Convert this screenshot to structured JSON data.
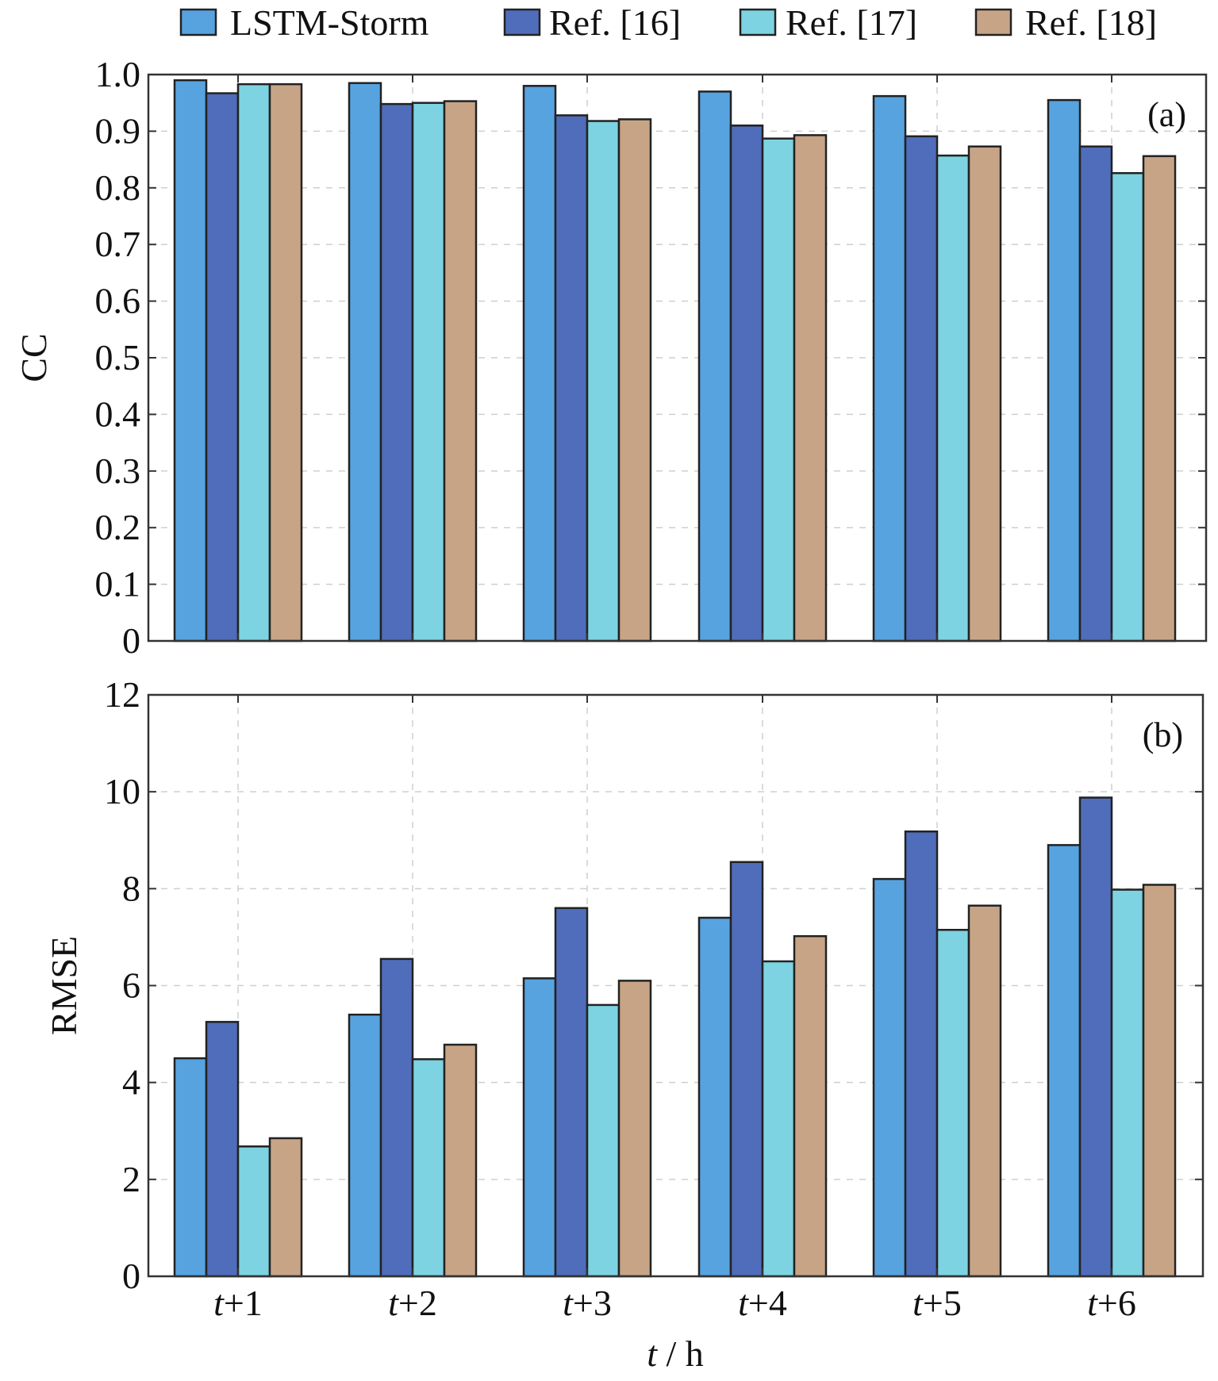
{
  "legend": {
    "entries": [
      "LSTM-Storm",
      "Ref. [16]",
      "Ref. [17]",
      "Ref. [18]"
    ]
  },
  "colors": {
    "LSTM-Storm": "#57a3e0",
    "Ref. [16]": "#4f6dba",
    "Ref. [17]": "#7dd3e2",
    "Ref. [18]": "#c8a487",
    "grid": "#cfcfcf",
    "frame": "#333333",
    "bar_outline": "#222222"
  },
  "xaxis": {
    "title": "t / h",
    "categories": [
      {
        "italic": "t",
        "rest": "+1"
      },
      {
        "italic": "t",
        "rest": "+2"
      },
      {
        "italic": "t",
        "rest": "+3"
      },
      {
        "italic": "t",
        "rest": "+4"
      },
      {
        "italic": "t",
        "rest": "+5"
      },
      {
        "italic": "t",
        "rest": "+6"
      }
    ],
    "title_italic": "t",
    "title_rest": " / h"
  },
  "chart_data": [
    {
      "type": "bar",
      "panel_label": "(a)",
      "ylabel": "CC",
      "ylim": [
        0,
        1.0
      ],
      "yticks": [
        "0",
        "0.1",
        "0.2",
        "0.3",
        "0.4",
        "0.5",
        "0.6",
        "0.7",
        "0.8",
        "0.9",
        "1.0"
      ],
      "ytick_values": [
        0,
        0.1,
        0.2,
        0.3,
        0.4,
        0.5,
        0.6,
        0.7,
        0.8,
        0.9,
        1.0
      ],
      "categories": [
        "t+1",
        "t+2",
        "t+3",
        "t+4",
        "t+5",
        "t+6"
      ],
      "grid": true,
      "legend_position": "top",
      "series": [
        {
          "name": "LSTM-Storm",
          "values": [
            0.99,
            0.985,
            0.98,
            0.97,
            0.962,
            0.955
          ]
        },
        {
          "name": "Ref. [16]",
          "values": [
            0.967,
            0.948,
            0.928,
            0.91,
            0.891,
            0.873
          ]
        },
        {
          "name": "Ref. [17]",
          "values": [
            0.983,
            0.95,
            0.918,
            0.887,
            0.857,
            0.826
          ]
        },
        {
          "name": "Ref. [18]",
          "values": [
            0.983,
            0.953,
            0.921,
            0.893,
            0.873,
            0.856
          ]
        }
      ]
    },
    {
      "type": "bar",
      "panel_label": "(b)",
      "ylabel": "RMSE",
      "ylim": [
        0,
        12
      ],
      "yticks": [
        "0",
        "2",
        "4",
        "6",
        "8",
        "10",
        "12"
      ],
      "ytick_values": [
        0,
        2,
        4,
        6,
        8,
        10,
        12
      ],
      "categories": [
        "t+1",
        "t+2",
        "t+3",
        "t+4",
        "t+5",
        "t+6"
      ],
      "grid": true,
      "series": [
        {
          "name": "LSTM-Storm",
          "values": [
            4.5,
            5.4,
            6.15,
            7.4,
            8.2,
            8.9
          ]
        },
        {
          "name": "Ref. [16]",
          "values": [
            5.25,
            6.55,
            7.6,
            8.55,
            9.18,
            9.88
          ]
        },
        {
          "name": "Ref. [17]",
          "values": [
            2.68,
            4.48,
            5.6,
            6.5,
            7.15,
            7.98
          ]
        },
        {
          "name": "Ref. [18]",
          "values": [
            2.85,
            4.78,
            6.1,
            7.02,
            7.65,
            8.08
          ]
        }
      ]
    }
  ]
}
